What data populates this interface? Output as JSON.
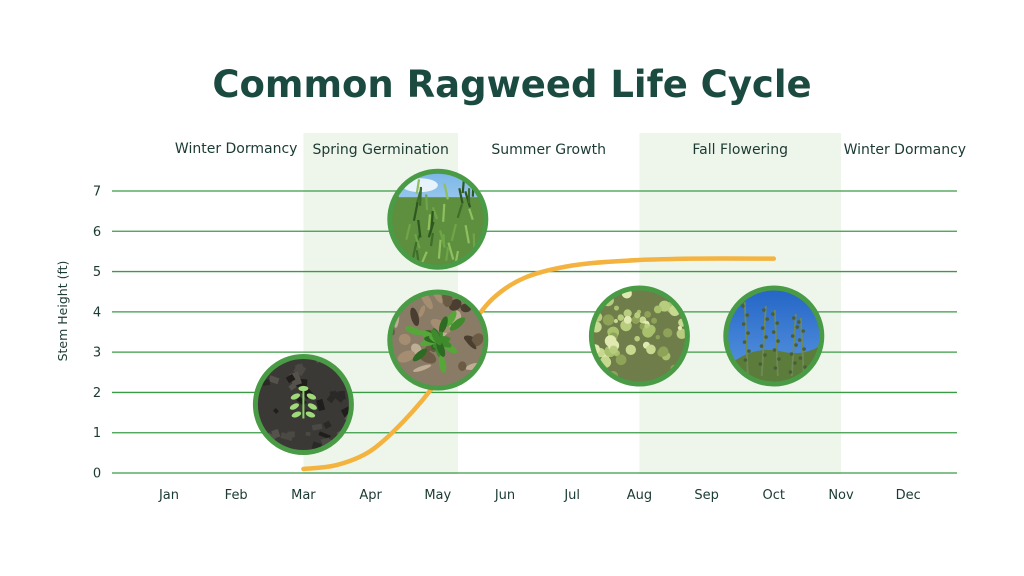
{
  "chart_data": {
    "type": "line",
    "title": "Common Ragweed Life Cycle",
    "ylabel": "Stem Height (ft)",
    "xlabel": "",
    "categories": [
      "Jan",
      "Feb",
      "Mar",
      "Apr",
      "May",
      "Jun",
      "Jul",
      "Aug",
      "Sep",
      "Oct",
      "Nov",
      "Dec"
    ],
    "y_ticks": [
      0,
      1,
      2,
      3,
      4,
      5,
      6,
      7
    ],
    "ylim": [
      0,
      7
    ],
    "grid": true,
    "seasons": [
      {
        "label": "Winter Dormancy",
        "start_month": 1,
        "end_month": 3,
        "shaded": false
      },
      {
        "label": "Spring Germination",
        "start_month": 3,
        "end_month": 5.3,
        "shaded": true
      },
      {
        "label": "Summer Growth",
        "start_month": 5.3,
        "end_month": 8,
        "shaded": false
      },
      {
        "label": "Fall Flowering",
        "start_month": 8,
        "end_month": 11,
        "shaded": true
      },
      {
        "label": "Winter Dormancy",
        "start_month": 11,
        "end_month": 12.9,
        "shaded": false
      }
    ],
    "series": [
      {
        "name": "",
        "color": "#f4b33e",
        "points": [
          {
            "month": 3.0,
            "height": 0.1
          },
          {
            "month": 3.5,
            "height": 0.2
          },
          {
            "month": 4.0,
            "height": 0.55
          },
          {
            "month": 4.5,
            "height": 1.3
          },
          {
            "month": 5.0,
            "height": 2.3
          },
          {
            "month": 5.4,
            "height": 3.4
          },
          {
            "month": 5.8,
            "height": 4.3
          },
          {
            "month": 6.3,
            "height": 4.85
          },
          {
            "month": 7.0,
            "height": 5.15
          },
          {
            "month": 7.8,
            "height": 5.27
          },
          {
            "month": 8.8,
            "height": 5.32
          },
          {
            "month": 10.0,
            "height": 5.32
          }
        ]
      }
    ],
    "photo_markers": [
      {
        "name": "seedling-photo",
        "month": 3.0,
        "height": 1.7,
        "scene": "seedling"
      },
      {
        "name": "young-plant-photo",
        "month": 5.0,
        "height": 3.3,
        "scene": "young"
      },
      {
        "name": "mature-plant-photo",
        "month": 5.0,
        "height": 6.3,
        "scene": "mature"
      },
      {
        "name": "flowering-plant-photo",
        "month": 8.0,
        "height": 3.4,
        "scene": "flowering"
      },
      {
        "name": "seed-stalks-photo",
        "month": 10.0,
        "height": 3.4,
        "scene": "seeds"
      }
    ],
    "colors": {
      "title": "#1b4b40",
      "grid": "#3a9b45",
      "season_shade": "#eef6ec",
      "line": "#f4b33e",
      "photo_border": "#4a9b45",
      "text": "#1b3a33"
    }
  }
}
